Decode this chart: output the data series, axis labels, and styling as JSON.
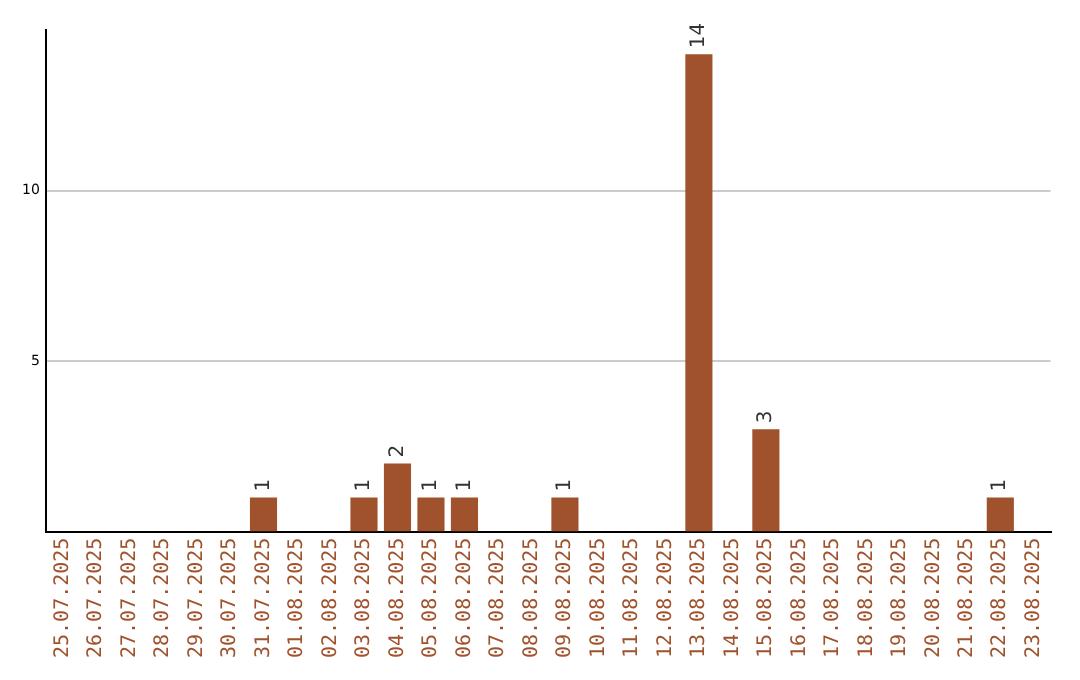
{
  "chart_data": {
    "type": "bar",
    "categories": [
      "25.07.2025",
      "26.07.2025",
      "27.07.2025",
      "28.07.2025",
      "29.07.2025",
      "30.07.2025",
      "31.07.2025",
      "01.08.2025",
      "02.08.2025",
      "03.08.2025",
      "04.08.2025",
      "05.08.2025",
      "06.08.2025",
      "07.08.2025",
      "08.08.2025",
      "09.08.2025",
      "10.08.2025",
      "11.08.2025",
      "12.08.2025",
      "13.08.2025",
      "14.08.2025",
      "15.08.2025",
      "16.08.2025",
      "17.08.2025",
      "18.08.2025",
      "19.08.2025",
      "20.08.2025",
      "21.08.2025",
      "22.08.2025",
      "23.08.2025"
    ],
    "values": [
      0,
      0,
      0,
      0,
      0,
      0,
      1,
      0,
      0,
      1,
      2,
      1,
      1,
      0,
      0,
      1,
      0,
      0,
      0,
      14,
      0,
      3,
      0,
      0,
      0,
      0,
      0,
      0,
      1,
      0
    ],
    "value_labels": [
      null,
      null,
      null,
      null,
      null,
      null,
      "1",
      null,
      null,
      "1",
      "2",
      "1",
      "1",
      null,
      null,
      "1",
      null,
      null,
      null,
      "14",
      null,
      "3",
      null,
      null,
      null,
      null,
      null,
      null,
      "1",
      null
    ],
    "color": "#a0522d",
    "ylim": [
      0,
      14.7
    ],
    "yticks": [
      5,
      10
    ],
    "grid": "y",
    "legend": false
  }
}
